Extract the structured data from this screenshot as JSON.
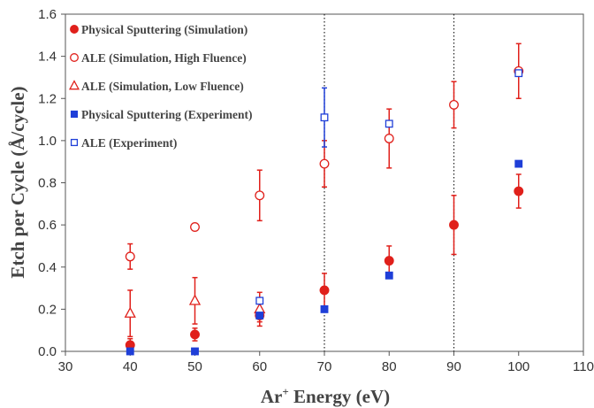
{
  "chart_data": {
    "type": "scatter",
    "xlabel": "Energy (eV)",
    "xlabel_prefix": "Ar",
    "xlabel_sup": "+",
    "ylabel": "Etch per Cycle (Å/cycle)",
    "xlim": [
      30,
      110
    ],
    "ylim": [
      0,
      1.6
    ],
    "xticks": [
      30,
      40,
      50,
      60,
      70,
      80,
      90,
      100,
      110
    ],
    "yticks": [
      0.0,
      0.2,
      0.4,
      0.6,
      0.8,
      1.0,
      1.2,
      1.4,
      1.6
    ],
    "ytick_labels": [
      "0.0",
      "0.2",
      "0.4",
      "0.6",
      "0.8",
      "1.0",
      "1.2",
      "1.4",
      "1.6"
    ],
    "vertical_reference_lines": [
      70,
      90
    ],
    "legend_position": "top-left",
    "series": [
      {
        "name": "Physical Sputtering (Simulation)",
        "marker": "filled-circle",
        "color": "#e0201b",
        "x": [
          40,
          50,
          60,
          70,
          80,
          90,
          100
        ],
        "y": [
          0.03,
          0.08,
          0.17,
          0.29,
          0.43,
          0.6,
          0.76
        ],
        "err": [
          0.03,
          0.03,
          0.03,
          0.08,
          0.07,
          0.14,
          0.08
        ]
      },
      {
        "name": "ALE (Simulation, High Fluence)",
        "marker": "open-circle",
        "color": "#e0201b",
        "x": [
          40,
          50,
          60,
          70,
          80,
          90,
          100
        ],
        "y": [
          0.45,
          0.59,
          0.74,
          0.89,
          1.01,
          1.17,
          1.33
        ],
        "err": [
          0.06,
          0.0,
          0.12,
          0.11,
          0.14,
          0.11,
          0.13
        ]
      },
      {
        "name": "ALE (Simulation, Low Fluence)",
        "marker": "open-triangle",
        "color": "#e0201b",
        "x": [
          40,
          50,
          60
        ],
        "y": [
          0.18,
          0.24,
          0.2
        ],
        "err": [
          0.11,
          0.11,
          0.08
        ]
      },
      {
        "name": "Physical Sputtering (Experiment)",
        "marker": "filled-square",
        "color": "#1f3fd8",
        "x": [
          40,
          50,
          60,
          70,
          80,
          100
        ],
        "y": [
          0.0,
          0.0,
          0.17,
          0.2,
          0.36,
          0.89
        ],
        "err": [
          0,
          0,
          0,
          0,
          0,
          0
        ]
      },
      {
        "name": "ALE (Experiment)",
        "marker": "open-square",
        "color": "#1f3fd8",
        "x": [
          60,
          70,
          80,
          100
        ],
        "y": [
          0.24,
          1.11,
          1.08,
          1.32
        ],
        "err": [
          0,
          0.14,
          0,
          0
        ]
      }
    ]
  }
}
